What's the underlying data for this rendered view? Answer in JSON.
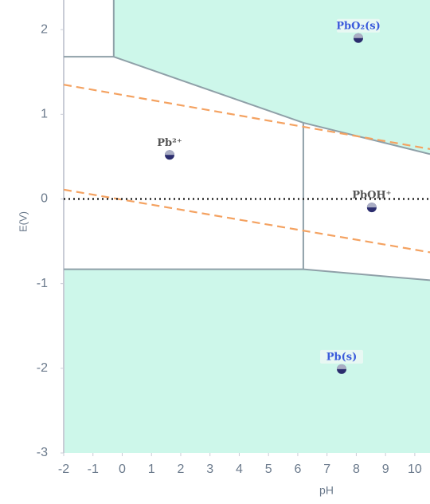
{
  "chart_data": {
    "type": "pourbaix",
    "xlabel": "pH",
    "ylabel": "E(V)",
    "xlim": [
      -2,
      10.52
    ],
    "ylim": [
      -3,
      2.35
    ],
    "xticks": [
      -2,
      -1,
      0,
      1,
      2,
      3,
      4,
      5,
      6,
      7,
      8,
      9,
      10
    ],
    "yticks": [
      -3,
      -2,
      -1,
      0,
      1,
      2
    ],
    "region_color": "#cdf7ea",
    "boundaries": [
      {
        "x": [
          -0.29,
          -0.29,
          6.19,
          10.52
        ],
        "y": [
          2.35,
          1.68,
          0.9,
          0.53
        ],
        "fill": "above",
        "color": "#8fa0a8",
        "style": "solid"
      },
      {
        "x": [
          -2,
          -0.29
        ],
        "y": [
          1.68,
          1.68
        ],
        "color": "#8fa0a8",
        "style": "solid"
      },
      {
        "x": [
          6.19,
          6.19
        ],
        "y": [
          0.9,
          -0.83
        ],
        "color": "#8fa0a8",
        "style": "solid"
      },
      {
        "x": [
          -2,
          6.19,
          10.52
        ],
        "y": [
          -0.83,
          -0.83,
          -0.96
        ],
        "fill": "below",
        "color": "#8fa0a8",
        "style": "solid"
      },
      {
        "x": [
          -2,
          10.52
        ],
        "y": [
          1.35,
          0.59
        ],
        "color": "#f4a261",
        "style": "dashed"
      },
      {
        "x": [
          -2,
          10.52
        ],
        "y": [
          0.11,
          -0.63
        ],
        "color": "#f4a261",
        "style": "dashed"
      },
      {
        "x": [
          -2,
          10.52
        ],
        "y": [
          0,
          0
        ],
        "color": "#111111",
        "style": "dotted"
      }
    ],
    "points": [
      {
        "label": "PbO₂(s)",
        "x": 8.07,
        "y": 1.9,
        "color": "#3b5bdb"
      },
      {
        "label": "Pb²⁺",
        "x": 1.62,
        "y": 0.52,
        "color": "#555555"
      },
      {
        "label": "PbOH⁺",
        "x": 8.53,
        "y": -0.1,
        "color": "#555555"
      },
      {
        "label": "Pb(s)",
        "x": 7.5,
        "y": -2.01,
        "color": "#3b5bdb"
      }
    ]
  }
}
